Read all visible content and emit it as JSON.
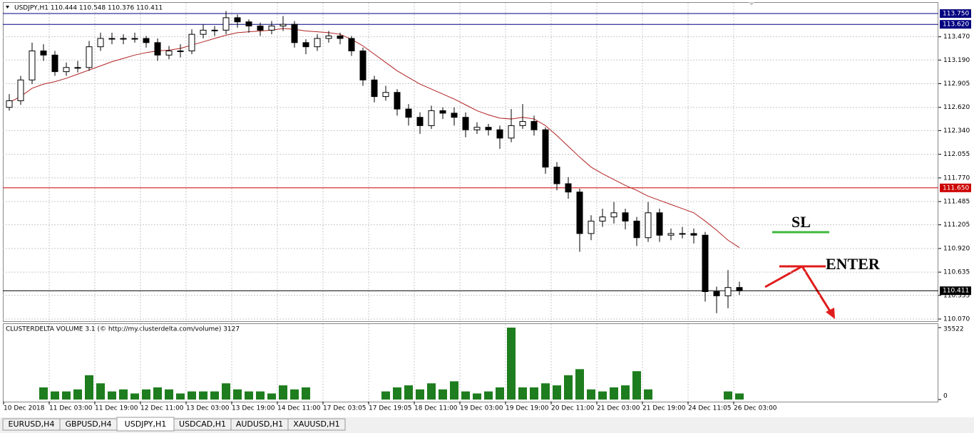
{
  "chart_data": {
    "type": "candlestick",
    "title": "USDJPY,H1  110.444 110.548 110.376 110.411",
    "ylim": [
      110.044,
      113.879
    ],
    "yticks": [
      {
        "value": 113.47,
        "label": "113.470"
      },
      {
        "value": 113.19,
        "label": "113.190"
      },
      {
        "value": 112.905,
        "label": "112.905"
      },
      {
        "value": 112.62,
        "label": "112.620"
      },
      {
        "value": 112.34,
        "label": "112.340"
      },
      {
        "value": 112.055,
        "label": "112.055"
      },
      {
        "value": 111.77,
        "label": "111.770"
      },
      {
        "value": 111.485,
        "label": "111.485"
      },
      {
        "value": 111.205,
        "label": "111.205"
      },
      {
        "value": 110.92,
        "label": "110.920"
      },
      {
        "value": 110.635,
        "label": "110.635"
      },
      {
        "value": 110.355,
        "label": "110.355"
      },
      {
        "value": 110.07,
        "label": "110.070"
      }
    ],
    "grid": true,
    "candle_color": "#000000",
    "levels": [
      {
        "value": 113.75,
        "label": "113.750",
        "color": "#000080"
      },
      {
        "value": 113.62,
        "label": "113.620",
        "color": "#000080"
      },
      {
        "value": 111.65,
        "label": "111.650",
        "color": "#cc0000"
      },
      {
        "value": 110.411,
        "label": "110.411",
        "color": "#000000"
      }
    ],
    "time_labels": [
      "10 Dec 2018",
      "11 Dec 03:00",
      "11 Dec 19:00",
      "12 Dec 11:00",
      "13 Dec 03:00",
      "13 Dec 19:00",
      "14 Dec 11:00",
      "17 Dec 03:05",
      "17 Dec 19:05",
      "18 Dec 11:00",
      "19 Dec 03:00",
      "19 Dec 19:00",
      "20 Dec 11:00",
      "21 Dec 03:00",
      "21 Dec 19:00",
      "24 Dec 11:05",
      "26 Dec 03:00"
    ],
    "ohlc": [
      [
        112.62,
        112.78,
        112.58,
        112.7
      ],
      [
        112.7,
        113.0,
        112.65,
        112.95
      ],
      [
        112.95,
        113.4,
        112.9,
        113.3
      ],
      [
        113.3,
        113.38,
        113.18,
        113.25
      ],
      [
        113.25,
        113.3,
        113.0,
        113.05
      ],
      [
        113.05,
        113.16,
        113.0,
        113.1
      ],
      [
        113.1,
        113.18,
        113.04,
        113.1
      ],
      [
        113.1,
        113.42,
        113.06,
        113.35
      ],
      [
        113.35,
        113.52,
        113.3,
        113.45
      ],
      [
        113.45,
        113.52,
        113.38,
        113.45
      ],
      [
        113.45,
        113.5,
        113.38,
        113.45
      ],
      [
        113.45,
        113.52,
        113.4,
        113.45
      ],
      [
        113.45,
        113.48,
        113.34,
        113.4
      ],
      [
        113.4,
        113.45,
        113.18,
        113.25
      ],
      [
        113.25,
        113.36,
        113.2,
        113.3
      ],
      [
        113.3,
        113.38,
        113.22,
        113.3
      ],
      [
        113.3,
        113.56,
        113.26,
        113.5
      ],
      [
        113.5,
        113.62,
        113.45,
        113.55
      ],
      [
        113.55,
        113.6,
        113.48,
        113.55
      ],
      [
        113.55,
        113.78,
        113.5,
        113.7
      ],
      [
        113.7,
        113.74,
        113.58,
        113.65
      ],
      [
        113.65,
        113.68,
        113.52,
        113.6
      ],
      [
        113.6,
        113.64,
        113.48,
        113.55
      ],
      [
        113.55,
        113.66,
        113.5,
        113.6
      ],
      [
        113.6,
        113.72,
        113.54,
        113.62
      ],
      [
        113.62,
        113.66,
        113.34,
        113.4
      ],
      [
        113.4,
        113.44,
        113.26,
        113.35
      ],
      [
        113.35,
        113.5,
        113.3,
        113.45
      ],
      [
        113.45,
        113.54,
        113.4,
        113.48
      ],
      [
        113.48,
        113.52,
        113.38,
        113.45
      ],
      [
        113.45,
        113.48,
        113.24,
        113.3
      ],
      [
        113.3,
        113.34,
        112.88,
        112.95
      ],
      [
        112.95,
        113.0,
        112.68,
        112.75
      ],
      [
        112.75,
        112.88,
        112.7,
        112.8
      ],
      [
        112.8,
        112.84,
        112.52,
        112.6
      ],
      [
        112.6,
        112.66,
        112.4,
        112.5
      ],
      [
        112.5,
        112.56,
        112.3,
        112.4
      ],
      [
        112.4,
        112.64,
        112.36,
        112.58
      ],
      [
        112.58,
        112.62,
        112.48,
        112.55
      ],
      [
        112.55,
        112.62,
        112.4,
        112.5
      ],
      [
        112.5,
        112.56,
        112.26,
        112.35
      ],
      [
        112.35,
        112.44,
        112.3,
        112.38
      ],
      [
        112.38,
        112.42,
        112.28,
        112.35
      ],
      [
        112.35,
        112.4,
        112.12,
        112.25
      ],
      [
        112.25,
        112.6,
        112.2,
        112.4
      ],
      [
        112.4,
        112.66,
        112.36,
        112.45
      ],
      [
        112.45,
        112.52,
        112.28,
        112.35
      ],
      [
        112.35,
        112.38,
        111.82,
        111.9
      ],
      [
        111.9,
        111.96,
        111.62,
        111.7
      ],
      [
        111.7,
        111.78,
        111.52,
        111.6
      ],
      [
        111.6,
        111.64,
        110.88,
        111.1
      ],
      [
        111.1,
        111.32,
        111.02,
        111.25
      ],
      [
        111.25,
        111.4,
        111.18,
        111.3
      ],
      [
        111.3,
        111.48,
        111.22,
        111.35
      ],
      [
        111.35,
        111.4,
        111.15,
        111.25
      ],
      [
        111.25,
        111.3,
        110.95,
        111.05
      ],
      [
        111.05,
        111.48,
        111.0,
        111.35
      ],
      [
        111.35,
        111.4,
        111.0,
        111.08
      ],
      [
        111.08,
        111.16,
        111.02,
        111.1
      ],
      [
        111.1,
        111.18,
        111.04,
        111.1
      ],
      [
        111.1,
        111.16,
        110.98,
        111.08
      ],
      [
        111.08,
        111.12,
        110.28,
        110.4
      ],
      [
        110.4,
        110.46,
        110.14,
        110.35
      ],
      [
        110.35,
        110.66,
        110.2,
        110.45
      ],
      [
        110.45,
        110.52,
        110.36,
        110.411
      ]
    ],
    "ma": {
      "color": "#b22222",
      "values": [
        112.68,
        112.75,
        112.85,
        112.9,
        112.93,
        112.97,
        113.02,
        113.07,
        113.12,
        113.17,
        113.21,
        113.25,
        113.28,
        113.3,
        113.31,
        113.33,
        113.37,
        113.41,
        113.45,
        113.49,
        113.52,
        113.53,
        113.54,
        113.55,
        113.57,
        113.56,
        113.54,
        113.53,
        113.52,
        113.5,
        113.44,
        113.36,
        113.26,
        113.16,
        113.06,
        112.98,
        112.9,
        112.84,
        112.78,
        112.72,
        112.65,
        112.58,
        112.53,
        112.49,
        112.48,
        112.5,
        112.48,
        112.4,
        112.28,
        112.15,
        112.02,
        111.9,
        111.82,
        111.75,
        111.68,
        111.62,
        111.55,
        111.5,
        111.45,
        111.4,
        111.35,
        111.25,
        111.14,
        111.02,
        110.93
      ]
    },
    "volume": {
      "title": "CLUSTERDELTA VOLUME 3.1 (© http://my.clusterdelta.com/volume) 3127",
      "color": "#1e7d1e",
      "ylim": [
        0,
        35522
      ],
      "yticks": [
        0,
        35522
      ],
      "values": [
        0,
        0,
        0,
        6000,
        4000,
        4000,
        5000,
        12000,
        8000,
        4000,
        5000,
        3000,
        5000,
        6000,
        5000,
        3000,
        4000,
        4000,
        4000,
        8000,
        5000,
        4000,
        4000,
        3000,
        7000,
        5000,
        6000,
        0,
        0,
        0,
        0,
        0,
        0,
        4000,
        6000,
        7000,
        5000,
        8000,
        5000,
        9000,
        4000,
        3000,
        4000,
        6000,
        35522,
        6000,
        6000,
        8000,
        7000,
        12000,
        15000,
        5000,
        4000,
        6000,
        7000,
        14000,
        5000,
        0,
        0,
        0,
        0,
        0,
        0,
        4000,
        3000
      ]
    },
    "annotations": [
      {
        "text": "SL",
        "color": "#3cb83c"
      },
      {
        "text": "ENTER",
        "color": "#e01b1b"
      }
    ]
  },
  "tabs": {
    "items": [
      "EURUSD,H4",
      "GBPUSD,H4",
      "USDJPY,H1",
      "USDCAD,H1",
      "AUDUSD,H1",
      "XAUUSD,H1"
    ],
    "active": 2
  }
}
